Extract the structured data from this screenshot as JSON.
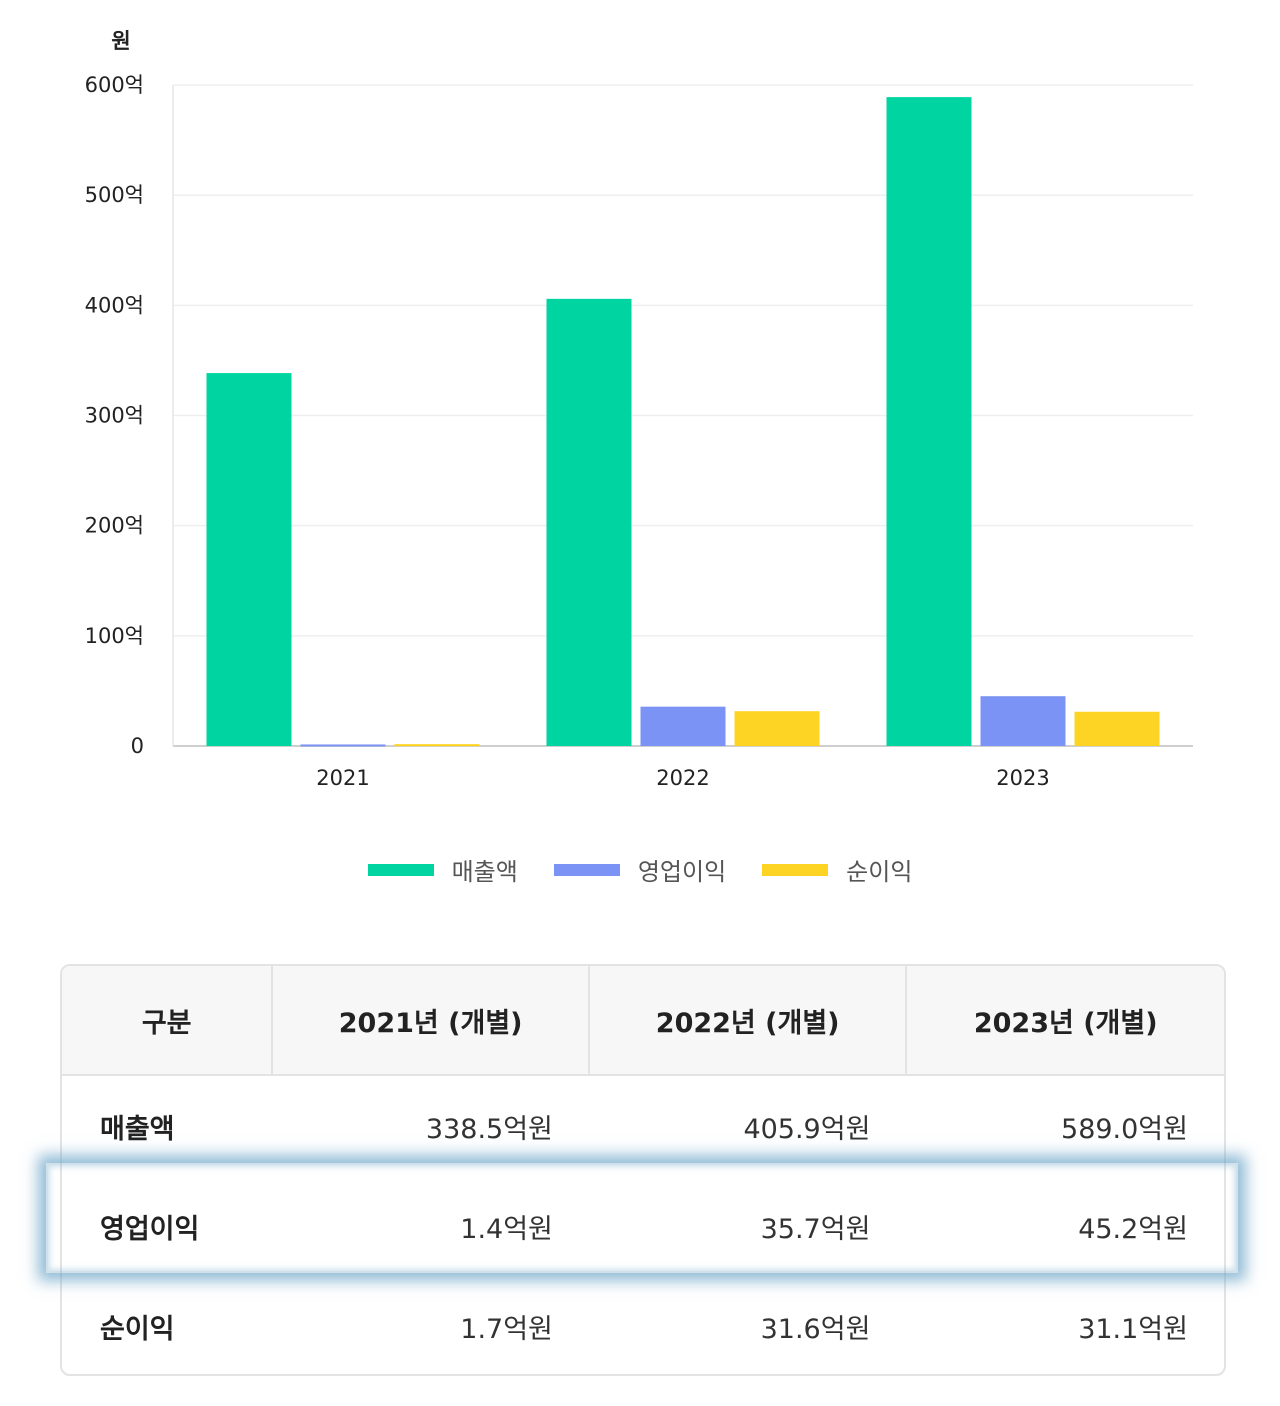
{
  "chart_data": {
    "type": "bar",
    "unit_label": "원",
    "categories": [
      "2021",
      "2022",
      "2023"
    ],
    "series": [
      {
        "name": "매출액",
        "values": [
          338.5,
          405.9,
          589.0
        ],
        "color": "#00d4a0"
      },
      {
        "name": "영업이익",
        "values": [
          1.4,
          35.7,
          45.2
        ],
        "color": "#7b93f5"
      },
      {
        "name": "순이익",
        "values": [
          1.7,
          31.6,
          31.1
        ],
        "color": "#fdd423"
      }
    ],
    "ylim": [
      0,
      600
    ],
    "yticks": [
      {
        "value": 0,
        "label": "0"
      },
      {
        "value": 100,
        "label": "100억"
      },
      {
        "value": 200,
        "label": "200억"
      },
      {
        "value": 300,
        "label": "300억"
      },
      {
        "value": 400,
        "label": "400억"
      },
      {
        "value": 500,
        "label": "500억"
      },
      {
        "value": 600,
        "label": "600억"
      }
    ],
    "grid": true,
    "legend_position": "bottom"
  },
  "table": {
    "headers": [
      "구분",
      "2021년 (개별)",
      "2022년 (개별)",
      "2023년 (개별)"
    ],
    "rows": [
      {
        "label": "매출액",
        "values": [
          "338.5억원",
          "405.9억원",
          "589.0억원"
        ]
      },
      {
        "label": "영업이익",
        "values": [
          "1.4억원",
          "35.7억원",
          "45.2억원"
        ]
      },
      {
        "label": "순이익",
        "values": [
          "1.7억원",
          "31.6억원",
          "31.1억원"
        ]
      }
    ]
  }
}
